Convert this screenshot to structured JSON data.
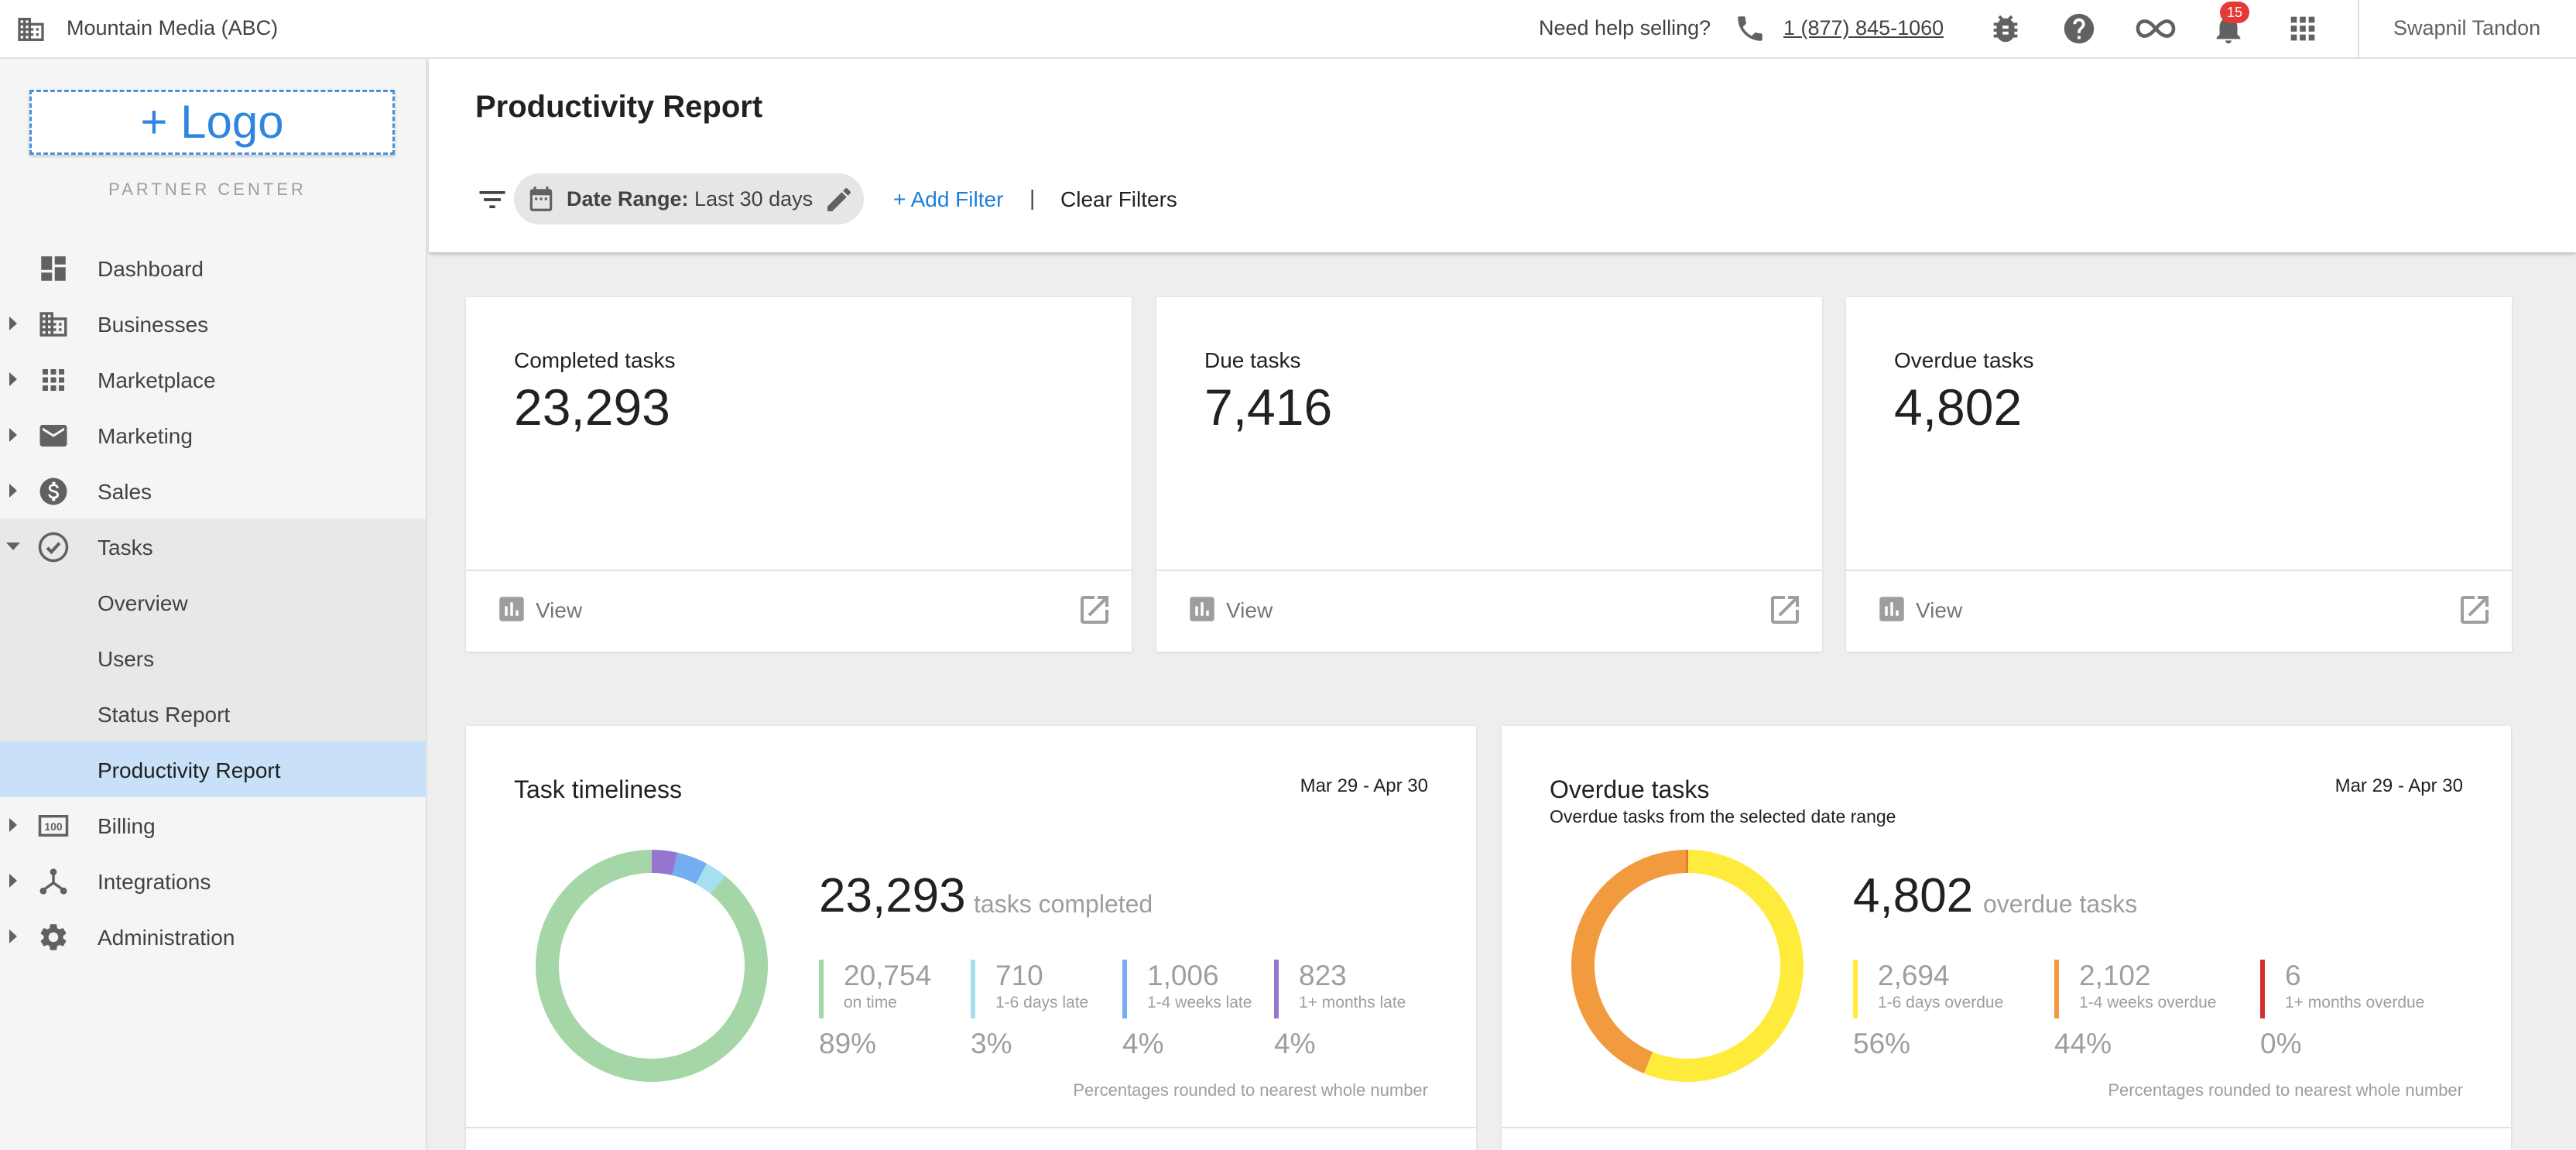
{
  "topbar": {
    "org_name": "Mountain Media (ABC)",
    "help_text": "Need help selling?",
    "phone": "1 (877) 845-1060",
    "notification_count": "15",
    "user_name": "Swapnil Tandon",
    "icons": [
      "building-icon",
      "phone-icon",
      "bug-icon",
      "help-icon",
      "link-icon",
      "bell-icon",
      "apps-grid-icon"
    ]
  },
  "sidebar": {
    "logo_text": "+ Logo",
    "partner_center": "PARTNER CENTER",
    "items": [
      {
        "label": "Dashboard",
        "icon": "dashboard-icon"
      },
      {
        "label": "Businesses",
        "icon": "building-icon"
      },
      {
        "label": "Marketplace",
        "icon": "grid-icon"
      },
      {
        "label": "Marketing",
        "icon": "mail-icon"
      },
      {
        "label": "Sales",
        "icon": "dollar-icon"
      },
      {
        "label": "Tasks",
        "icon": "check-circle-icon"
      },
      {
        "label": "Overview"
      },
      {
        "label": "Users"
      },
      {
        "label": "Status Report"
      },
      {
        "label": "Productivity Report"
      },
      {
        "label": "Billing",
        "icon": "billing-icon"
      },
      {
        "label": "Integrations",
        "icon": "integrations-icon"
      },
      {
        "label": "Administration",
        "icon": "gear-icon"
      }
    ]
  },
  "header": {
    "title": "Productivity Report",
    "date_range_label": "Date Range:",
    "date_range_value": "Last 30 days",
    "add_filter": "+ Add Filter",
    "separator": "|",
    "clear_filters": "Clear Filters"
  },
  "stats": [
    {
      "label": "Completed tasks",
      "value": "23,293",
      "view": "View"
    },
    {
      "label": "Due tasks",
      "value": "7,416",
      "view": "View"
    },
    {
      "label": "Overdue tasks",
      "value": "4,802",
      "view": "View"
    }
  ],
  "timeliness": {
    "title": "Task timeliness",
    "date": "Mar 29 - Apr 30",
    "total": "23,293",
    "total_unit": "tasks completed",
    "metrics": [
      {
        "value": "20,754",
        "label": "on time",
        "pct": "89%",
        "color": "#a5d6a7"
      },
      {
        "value": "710",
        "label": "1-6 days late",
        "pct": "3%",
        "color": "#a8dff0"
      },
      {
        "value": "1,006",
        "label": "1-4 weeks late",
        "pct": "4%",
        "color": "#74aef0"
      },
      {
        "value": "823",
        "label": "1+ months late",
        "pct": "4%",
        "color": "#9575cd"
      }
    ],
    "note": "Percentages rounded to nearest whole number"
  },
  "overdue": {
    "title": "Overdue tasks",
    "subtitle": "Overdue tasks from the selected date range",
    "date": "Mar 29 - Apr 30",
    "total": "4,802",
    "total_unit": "overdue tasks",
    "metrics": [
      {
        "value": "2,694",
        "label": "1-6 days overdue",
        "pct": "56%",
        "color": "#ffeb3b"
      },
      {
        "value": "2,102",
        "label": "1-4 weeks overdue",
        "pct": "44%",
        "color": "#f19a3e"
      },
      {
        "value": "6",
        "label": "1+ months overdue",
        "pct": "0%",
        "color": "#d32f2f"
      }
    ],
    "note": "Percentages rounded to nearest whole number"
  },
  "chart_data": [
    {
      "type": "pie",
      "title": "Task timeliness",
      "categories": [
        "on time",
        "1-6 days late",
        "1-4 weeks late",
        "1+ months late"
      ],
      "values": [
        20754,
        710,
        1006,
        823
      ],
      "colors": [
        "#a5d6a7",
        "#a8dff0",
        "#74aef0",
        "#9575cd"
      ]
    },
    {
      "type": "pie",
      "title": "Overdue tasks",
      "categories": [
        "1-6 days overdue",
        "1-4 weeks overdue",
        "1+ months overdue"
      ],
      "values": [
        2694,
        2102,
        6
      ],
      "colors": [
        "#ffeb3b",
        "#f19a3e",
        "#d32f2f"
      ]
    }
  ]
}
